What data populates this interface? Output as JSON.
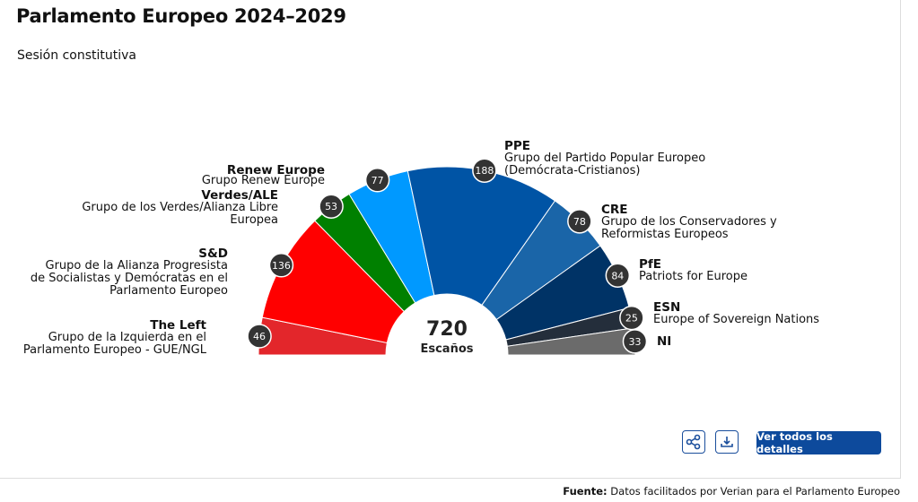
{
  "title": "Parlamento Europeo 2024–2029",
  "subtitle": "Sesión constitutiva",
  "chart_data": {
    "type": "pie",
    "variant": "hemicycle",
    "title": "Parlamento Europeo 2024–2029",
    "total": 720,
    "total_label": "Escaños",
    "series": [
      {
        "abbr": "The Left",
        "name": "Grupo de la Izquierda en el Parlamento Europeo - GUE/NGL",
        "value": 46,
        "color": "#e3262b"
      },
      {
        "abbr": "S&D",
        "name": "Grupo de la Alianza Progresista de Socialistas y Demócratas en el Parlamento Europeo",
        "value": 136,
        "color": "#ff0000"
      },
      {
        "abbr": "Verdes/ALE",
        "name": "Grupo de los Verdes/Alianza Libre Europea",
        "value": 53,
        "color": "#008000"
      },
      {
        "abbr": "Renew Europe",
        "name": "Grupo Renew Europe",
        "value": 77,
        "color": "#0099ff"
      },
      {
        "abbr": "PPE",
        "name": "Grupo del Partido Popular Europeo (Demócrata-Cristianos)",
        "value": 188,
        "color": "#0054a5"
      },
      {
        "abbr": "CRE",
        "name": "Grupo de los Conservadores y Reformistas Europeos",
        "value": 78,
        "color": "#1a65a8"
      },
      {
        "abbr": "PfE",
        "name": "Patriots for Europe",
        "value": 84,
        "color": "#003366"
      },
      {
        "abbr": "ESN",
        "name": "Europe of Sovereign Nations",
        "value": 25,
        "color": "#242e3b"
      },
      {
        "abbr": "NI",
        "name": "",
        "value": 33,
        "color": "#6b6b6b"
      }
    ]
  },
  "labels": {
    "left_l1": "Grupo de la Izquierda en el",
    "left_l2": "Parlamento Europeo - GUE/NGL",
    "sd_l1": "Grupo de la Alianza Progresista",
    "sd_l2": "de Socialistas y Demócratas en el",
    "sd_l3": "Parlamento Europeo",
    "greens_l1": "Grupo de los Verdes/Alianza Libre",
    "greens_l2": "Europea",
    "ppe_l1": "Grupo del Partido Popular Europeo",
    "ppe_l2": "(Demócrata-Cristianos)",
    "cre_l1": "Grupo de los Conservadores y",
    "cre_l2": "Reformistas Europeos"
  },
  "actions": {
    "details": "Ver todos los detalles",
    "share_icon": "share-icon",
    "download_icon": "download-icon"
  },
  "footer": {
    "label": "Fuente:",
    "text": " Datos facilitados por Verian para el Parlamento Europeo"
  }
}
